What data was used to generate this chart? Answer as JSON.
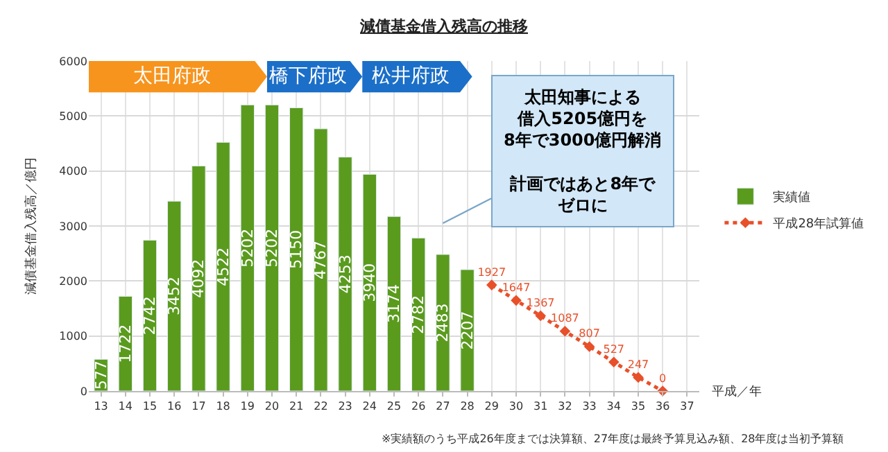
{
  "chart_data": {
    "type": "bar",
    "title": "減債基金借入残高の推移",
    "xlabel": "平成／年",
    "ylabel": "減債基金借入残高／億円",
    "categories": [
      "13",
      "14",
      "15",
      "16",
      "17",
      "18",
      "19",
      "20",
      "21",
      "22",
      "23",
      "24",
      "25",
      "26",
      "27",
      "28",
      "29",
      "30",
      "31",
      "32",
      "33",
      "34",
      "35",
      "36",
      "37"
    ],
    "series": [
      {
        "name": "実績値",
        "color": "#5a9b1e",
        "values": [
          577,
          1722,
          2742,
          3452,
          4092,
          4522,
          5202,
          5202,
          5150,
          4767,
          4253,
          3940,
          3174,
          2782,
          2483,
          2207,
          null,
          null,
          null,
          null,
          null,
          null,
          null,
          null,
          null
        ]
      },
      {
        "name": "平成28年試算値",
        "type": "line",
        "color": "#e8502a",
        "line_style": "dotted",
        "marker": "diamond",
        "values": [
          null,
          null,
          null,
          null,
          null,
          null,
          null,
          null,
          null,
          null,
          null,
          null,
          null,
          null,
          null,
          null,
          1927,
          1647,
          1367,
          1087,
          807,
          527,
          247,
          0,
          null
        ]
      }
    ],
    "ylim": [
      0,
      6000
    ],
    "yticks": [
      0,
      1000,
      2000,
      3000,
      4000,
      5000,
      6000
    ],
    "grid": true,
    "legend": "right",
    "data_labels": true,
    "annotations": [
      "太田府政",
      "橋下府政",
      "松井府政",
      "太田知事による",
      "借入5205億円を",
      "8年で3000億円解消",
      "計画ではあと8年で",
      "ゼロに",
      "※実績額のうち平成26年度までは決算額、27年度は最終予算見込み額、28年度は当初予算額"
    ]
  }
}
